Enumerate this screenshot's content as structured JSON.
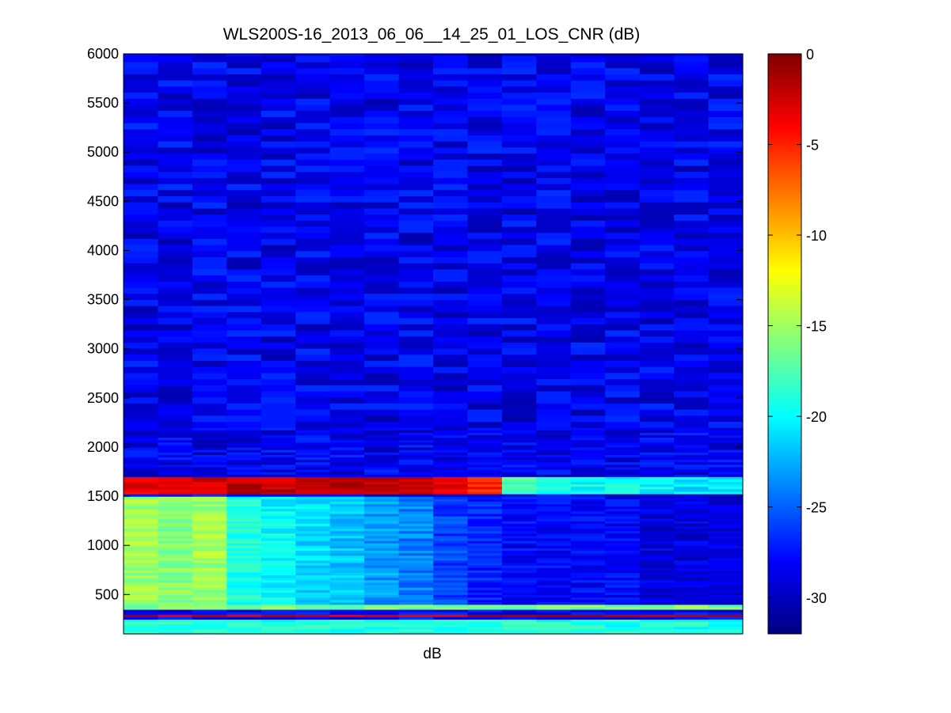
{
  "chart_data": {
    "type": "heatmap",
    "title": "WLS200S-16_2013_06_06__14_25_01_LOS_CNR (dB)",
    "xlabel": "dB",
    "ylabel": "",
    "colormap": "jet",
    "grid": false,
    "columns": 18,
    "ylim": [
      100,
      6000
    ],
    "yticks": [
      500,
      1000,
      1500,
      2000,
      2500,
      3000,
      3500,
      4000,
      4500,
      5000,
      5500,
      6000
    ],
    "colorbar": {
      "position": "right",
      "clim": [
        -32,
        0
      ],
      "ticks": [
        0,
        -5,
        -10,
        -15,
        -20,
        -25,
        -30
      ]
    },
    "features": {
      "background_cnr_db": -28.5,
      "bands": [
        {
          "y_start": 100,
          "y_end": 260,
          "cnr_db": -19
        },
        {
          "y_start": 265,
          "y_end": 300,
          "cnr_db": -2
        },
        {
          "y_start": 360,
          "y_end": 400,
          "cnr_db": -16
        },
        {
          "y_start": 1530,
          "y_end": 1700,
          "cnr_db_by_column": [
            -3,
            -3,
            -2.5,
            -2,
            -2,
            -1.5,
            -1.5,
            -2,
            -2.5,
            -3,
            -5,
            -18,
            -19,
            -20,
            -20,
            -20,
            -21,
            -21
          ]
        },
        {
          "y_start": 400,
          "y_end": 1500,
          "cnr_db_by_column": [
            -15,
            -16,
            -15,
            -19,
            -20,
            -21,
            -22,
            -23,
            -24,
            -26,
            -27,
            -28,
            -28,
            -28,
            -28,
            -29,
            -29,
            -29
          ]
        }
      ]
    }
  }
}
